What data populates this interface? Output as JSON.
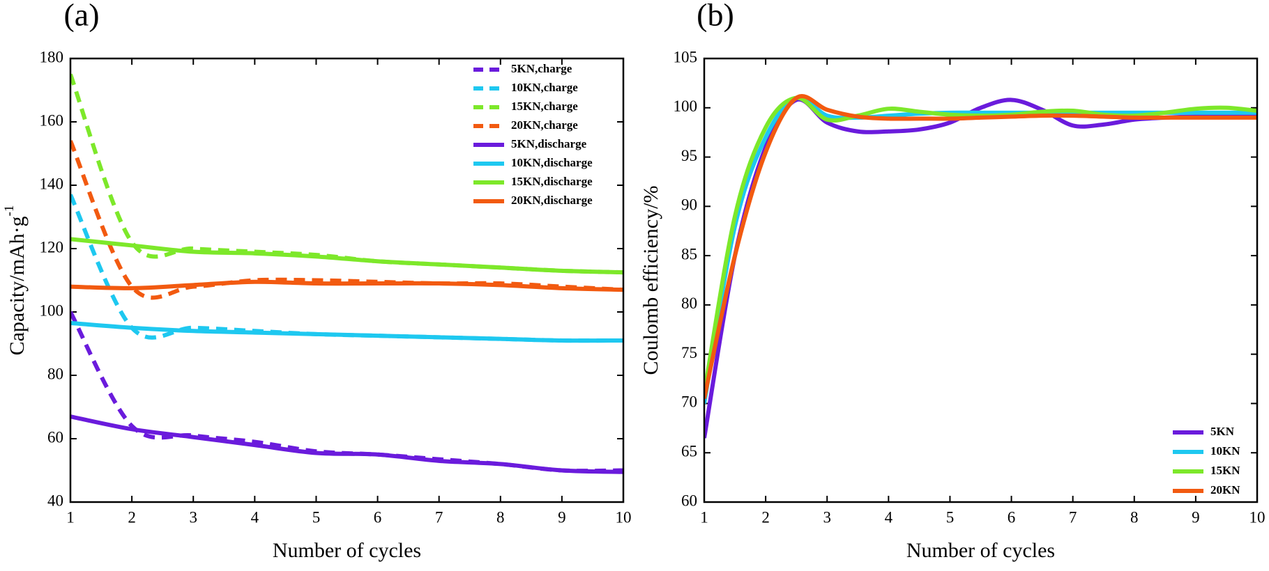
{
  "chart_data": [
    {
      "type": "line",
      "label": "(a)",
      "x_label": "Number of cycles",
      "y_label": "Capacity/mAh·g",
      "y_label_superscript": "-1",
      "x": [
        1,
        2,
        3,
        4,
        5,
        6,
        7,
        8,
        9,
        10
      ],
      "xlim": [
        1,
        10
      ],
      "xticks": [
        1,
        2,
        3,
        4,
        5,
        6,
        7,
        8,
        9,
        10
      ],
      "ylim": [
        40,
        180
      ],
      "yticks": [
        40,
        60,
        80,
        100,
        120,
        140,
        160,
        180
      ],
      "legend": "upper right",
      "series": [
        {
          "name": "5KN,charge",
          "color": "#6a1bdc",
          "dashed": true,
          "values": [
            100,
            64,
            61,
            59,
            56,
            55,
            53.5,
            52,
            50,
            50
          ]
        },
        {
          "name": "10KN,charge",
          "color": "#1ec8f0",
          "dashed": true,
          "values": [
            137,
            95,
            95,
            94,
            93,
            92.5,
            92,
            91.5,
            91,
            91
          ]
        },
        {
          "name": "15KN,charge",
          "color": "#7de82a",
          "dashed": true,
          "values": [
            175,
            122,
            120,
            119,
            118,
            116,
            115,
            114,
            113,
            112.5
          ]
        },
        {
          "name": "20KN,charge",
          "color": "#f25a10",
          "dashed": true,
          "values": [
            154,
            108,
            108,
            110,
            110,
            109.5,
            109,
            109,
            108,
            107
          ]
        },
        {
          "name": "5KN,discharge",
          "color": "#6a1bdc",
          "dashed": false,
          "values": [
            67,
            63,
            60.5,
            58,
            55.5,
            55,
            53,
            52,
            50,
            49.5
          ]
        },
        {
          "name": "10KN,discharge",
          "color": "#1ec8f0",
          "dashed": false,
          "values": [
            96.5,
            95,
            94,
            93.5,
            93,
            92.5,
            92,
            91.5,
            91,
            91
          ]
        },
        {
          "name": "15KN,discharge",
          "color": "#7de82a",
          "dashed": false,
          "values": [
            123,
            121,
            119,
            118.5,
            117.5,
            116,
            115,
            114,
            113,
            112.5
          ]
        },
        {
          "name": "20KN,discharge",
          "color": "#f25a10",
          "dashed": false,
          "values": [
            108,
            107.5,
            108.5,
            109.5,
            109,
            109,
            109,
            108.5,
            107.5,
            107
          ]
        }
      ]
    },
    {
      "type": "line",
      "label": "(b)",
      "x_label": "Number of cycles",
      "y_label": "Coulomb efficiency/%",
      "x": [
        1,
        1.5,
        2,
        2.5,
        3,
        3.5,
        4,
        4.5,
        5,
        5.5,
        6,
        6.5,
        7,
        7.5,
        8,
        8.5,
        9,
        9.5,
        10
      ],
      "xlim": [
        1,
        10
      ],
      "xticks": [
        1,
        2,
        3,
        4,
        5,
        6,
        7,
        8,
        9,
        10
      ],
      "ylim": [
        60,
        105
      ],
      "yticks": [
        60,
        65,
        70,
        75,
        80,
        85,
        90,
        95,
        100,
        105
      ],
      "legend": "lower right",
      "series": [
        {
          "name": "5KN",
          "color": "#6a1bdc",
          "dashed": false,
          "values": [
            66.5,
            85,
            96,
            100.8,
            98.5,
            97.6,
            97.6,
            97.8,
            98.5,
            100,
            100.8,
            99.8,
            98.2,
            98.3,
            98.8,
            99,
            99.1,
            99.1,
            99.1
          ]
        },
        {
          "name": "10KN",
          "color": "#1ec8f0",
          "dashed": false,
          "values": [
            70,
            88,
            97,
            101,
            99.2,
            99,
            99.2,
            99.4,
            99.5,
            99.5,
            99.5,
            99.5,
            99.5,
            99.5,
            99.5,
            99.5,
            99.5,
            99.5,
            99.5
          ]
        },
        {
          "name": "15KN",
          "color": "#7de82a",
          "dashed": false,
          "values": [
            71,
            89,
            98,
            101,
            98.8,
            99.2,
            99.9,
            99.6,
            99.3,
            99.2,
            99.3,
            99.6,
            99.7,
            99.3,
            99.2,
            99.5,
            99.9,
            100,
            99.7
          ]
        },
        {
          "name": "20KN",
          "color": "#f25a10",
          "dashed": false,
          "values": [
            70.5,
            85,
            95.5,
            101,
            99.8,
            99.1,
            98.9,
            98.9,
            98.9,
            99,
            99.1,
            99.2,
            99.2,
            99.1,
            99,
            99,
            99,
            99,
            99
          ]
        }
      ]
    }
  ]
}
